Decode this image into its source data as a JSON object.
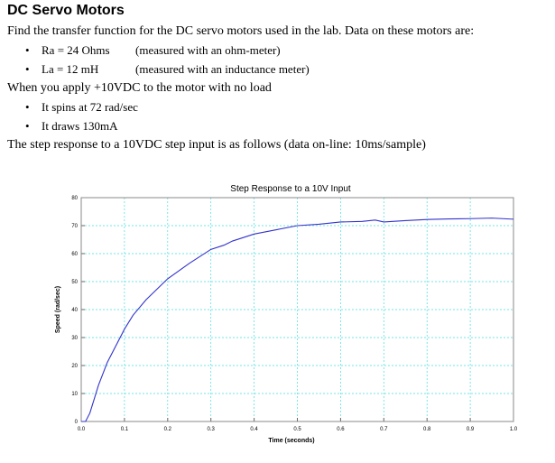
{
  "title": "DC Servo Motors",
  "intro": "Find the transfer function for the DC servo motors used in the lab.  Data on these motors are:",
  "params": [
    {
      "text": "Ra = 24 Ohms",
      "note": "(measured with an ohm-meter)"
    },
    {
      "text": "La = 12 mH",
      "note": "(measured with an inductance meter)"
    }
  ],
  "noload_intro": "When you apply +10VDC to the motor with no load",
  "noload": [
    "It spins at 72 rad/sec",
    "It draws 130mA"
  ],
  "step_intro": "The step response to a 10VDC step input is as follows (data on-line:  10ms/sample)",
  "chart_data": {
    "type": "line",
    "title": "Step Response to a 10V Input",
    "xlabel": "Time (seconds)",
    "ylabel": "Speed (rad/sec)",
    "xlim": [
      0,
      1
    ],
    "ylim": [
      0,
      80
    ],
    "xticks": [
      "0.0",
      "0.1",
      "0.2",
      "0.3",
      "0.4",
      "0.5",
      "0.6",
      "0.7",
      "0.8",
      "0.9",
      "1.0"
    ],
    "yticks": [
      "0",
      "10",
      "20",
      "30",
      "40",
      "50",
      "60",
      "70",
      "80"
    ],
    "grid": true,
    "color": "#3333cc",
    "x": [
      0,
      0.01,
      0.02,
      0.03,
      0.04,
      0.05,
      0.06,
      0.08,
      0.1,
      0.12,
      0.15,
      0.2,
      0.25,
      0.3,
      0.33,
      0.35,
      0.4,
      0.45,
      0.5,
      0.55,
      0.6,
      0.65,
      0.68,
      0.7,
      0.75,
      0.8,
      0.85,
      0.9,
      0.95,
      1.0
    ],
    "y": [
      0,
      0,
      3,
      8,
      13,
      17,
      21,
      27,
      33,
      38,
      43.5,
      51,
      56.5,
      61.5,
      63,
      64.5,
      67,
      68.5,
      70,
      70.5,
      71.3,
      71.5,
      72,
      71.3,
      71.8,
      72.2,
      72.4,
      72.5,
      72.7,
      72.3
    ]
  }
}
